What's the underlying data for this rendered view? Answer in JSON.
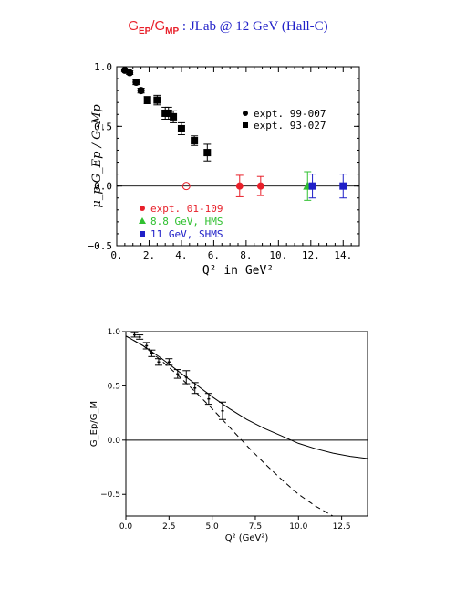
{
  "header": {
    "title_num": "G",
    "title_num_sub": "EP",
    "title_slash": "/",
    "title_den": "G",
    "title_den_sub": "MP",
    "title_rest": ": JLab @ 12 GeV (Hall-C)"
  },
  "chart_data": [
    {
      "type": "scatter",
      "ylabel": "μ_p G_Ep / G_Mp",
      "xlabel": "Q² in GeV²",
      "xlim": [
        0,
        15
      ],
      "ylim": [
        -0.5,
        1.0
      ],
      "x_ticks": [
        "0.",
        "2.",
        "4.",
        "6.",
        "8.",
        "10.",
        "12.",
        "14."
      ],
      "y_ticks": [
        "1.0",
        "0.5",
        "0.0",
        "−0.5"
      ],
      "legend_upper": [
        {
          "label": "expt. 99-007",
          "marker": "circle",
          "color": "#000000"
        },
        {
          "label": "expt. 93-027",
          "marker": "square",
          "color": "#000000"
        }
      ],
      "legend_lower": [
        {
          "label": "expt. 01-109",
          "marker": "circle",
          "color": "#e8202a"
        },
        {
          "label": "8.8 GeV, HMS",
          "marker": "triangle",
          "color": "#30c030"
        },
        {
          "label": "11 GeV, SHMS",
          "marker": "square",
          "color": "#2020c8"
        }
      ],
      "series": [
        {
          "name": "expt. 99-007",
          "marker": "circle",
          "color": "#000000",
          "points": [
            [
              0.5,
              0.97,
              0.01
            ],
            [
              0.8,
              0.95,
              0.015
            ],
            [
              1.2,
              0.87,
              0.02
            ],
            [
              1.5,
              0.8,
              0.02
            ]
          ]
        },
        {
          "name": "expt. 93-027",
          "marker": "square",
          "color": "#000000",
          "points": [
            [
              1.9,
              0.72,
              0.03
            ],
            [
              2.5,
              0.72,
              0.04
            ],
            [
              3.0,
              0.61,
              0.05
            ],
            [
              3.2,
              0.61,
              0.05
            ],
            [
              3.5,
              0.58,
              0.05
            ],
            [
              4.0,
              0.48,
              0.05
            ],
            [
              4.8,
              0.38,
              0.04
            ],
            [
              5.6,
              0.28,
              0.07
            ]
          ]
        },
        {
          "name": "expt. 01-109",
          "marker": "circle",
          "color": "#e8202a",
          "points": [
            [
              7.6,
              0.0,
              0.09
            ],
            [
              8.9,
              0.0,
              0.08
            ]
          ]
        },
        {
          "name": "8.8 GeV, HMS",
          "marker": "triangle",
          "color": "#30c030",
          "points": [
            [
              11.8,
              0.0,
              0.12
            ]
          ]
        },
        {
          "name": "11 GeV, SHMS",
          "marker": "square",
          "color": "#2020c8",
          "points": [
            [
              12.1,
              0.0,
              0.1
            ],
            [
              14.0,
              0.0,
              0.1
            ]
          ]
        }
      ],
      "open_marker": {
        "x": 4.3,
        "y": 0.0,
        "color": "#e8202a"
      },
      "zero_line": true
    },
    {
      "type": "line",
      "ylabel": "G_Ep/G_M",
      "xlabel": "Q² (GeV²)",
      "xlim": [
        0,
        14
      ],
      "ylim": [
        -0.7,
        1.0
      ],
      "x_ticks": [
        "0.0",
        "2.5",
        "5.0",
        "7.5",
        "10.0",
        "12.5"
      ],
      "y_ticks": [
        "1.0",
        "0.5",
        "0.0",
        "−0.5"
      ],
      "data_points": [
        [
          0.5,
          0.97,
          0.02
        ],
        [
          0.8,
          0.95,
          0.02
        ],
        [
          1.2,
          0.87,
          0.03
        ],
        [
          1.5,
          0.8,
          0.03
        ],
        [
          1.9,
          0.72,
          0.03
        ],
        [
          2.5,
          0.72,
          0.03
        ],
        [
          3.0,
          0.61,
          0.04
        ],
        [
          3.5,
          0.58,
          0.06
        ],
        [
          4.0,
          0.48,
          0.05
        ],
        [
          4.8,
          0.38,
          0.05
        ],
        [
          5.6,
          0.27,
          0.08
        ]
      ],
      "series": [
        {
          "style": "solid",
          "x": [
            0,
            1,
            2,
            3,
            4,
            5,
            6,
            7,
            8,
            9,
            10,
            11,
            12,
            13,
            14
          ],
          "y": [
            0.96,
            0.87,
            0.76,
            0.64,
            0.52,
            0.4,
            0.29,
            0.19,
            0.11,
            0.04,
            -0.03,
            -0.08,
            -0.12,
            -0.15,
            -0.17
          ]
        },
        {
          "style": "dashed",
          "x": [
            0,
            1,
            2,
            3,
            4,
            5,
            6,
            7,
            8,
            9,
            10,
            11,
            12
          ],
          "y": [
            0.96,
            0.87,
            0.74,
            0.6,
            0.45,
            0.29,
            0.12,
            -0.05,
            -0.21,
            -0.36,
            -0.5,
            -0.61,
            -0.7
          ]
        }
      ],
      "zero_line": true
    }
  ]
}
